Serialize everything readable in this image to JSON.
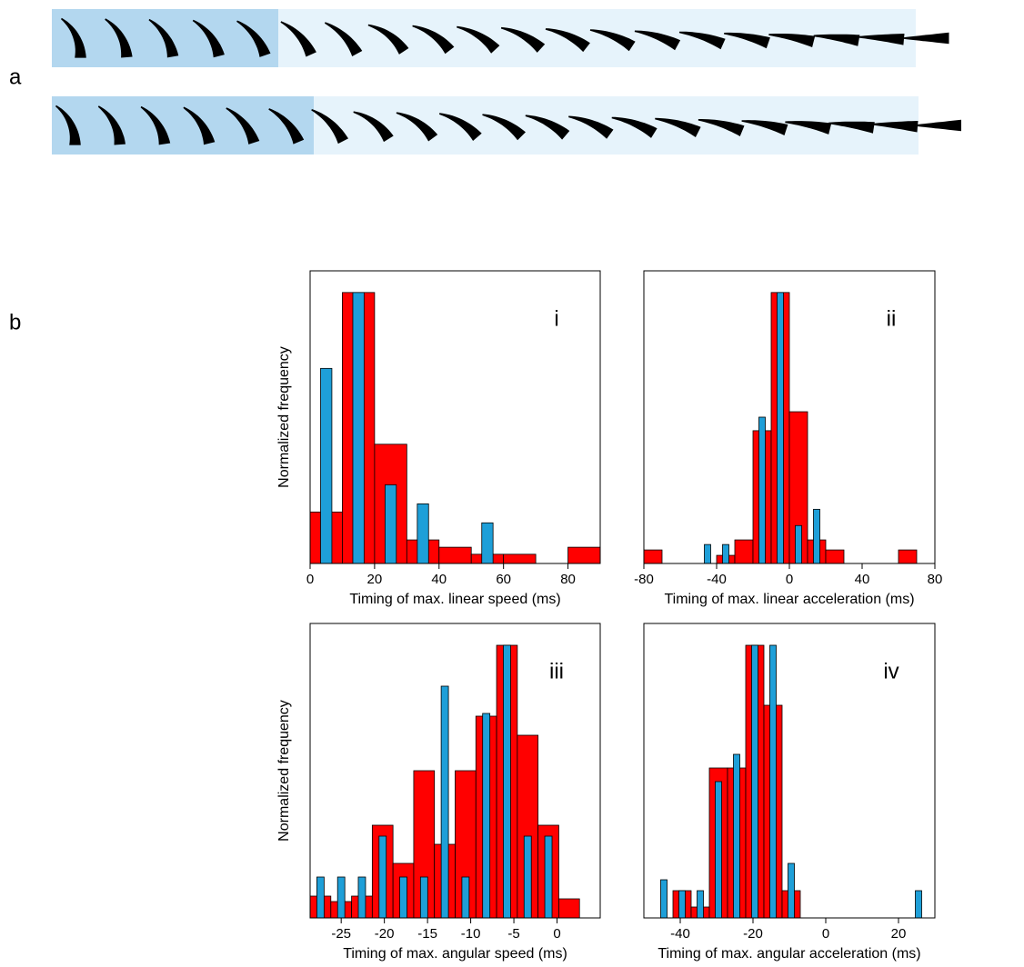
{
  "panel_labels": [
    "a",
    "b"
  ],
  "chart_data": [
    {
      "type": "histogram",
      "annotation": "i",
      "xlabel": "Timing of max. linear speed (ms)",
      "ylabel": "Normalized frequency",
      "bins": [
        0,
        10,
        20,
        30,
        40,
        50,
        60,
        70,
        80,
        90
      ],
      "series": [
        {
          "color": "#ff0000",
          "values": [
            0.19,
            1.0,
            0.44,
            0.087,
            0.06,
            0.034,
            0.034,
            0,
            0.06
          ]
        },
        {
          "color": "#1e9fd8",
          "values": [
            0.72,
            1.0,
            0.29,
            0.22,
            0,
            0.15,
            0,
            0,
            0
          ]
        }
      ],
      "xlim": [
        0,
        90
      ],
      "xticks": [
        0,
        20,
        40,
        60,
        80
      ],
      "ylim": [
        0,
        1.08
      ]
    },
    {
      "type": "histogram",
      "annotation": "ii",
      "xlabel": "Timing of max. linear acceleration (ms)",
      "bins": [
        -80,
        -70,
        -60,
        -50,
        -40,
        -30,
        -20,
        -10,
        0,
        10,
        20,
        30,
        40,
        50,
        60,
        70
      ],
      "series": [
        {
          "color": "#ff0000",
          "values": [
            0.05,
            0,
            0,
            0,
            0.03,
            0.087,
            0.49,
            1.0,
            0.56,
            0.087,
            0.05,
            0,
            0,
            0,
            0.05
          ]
        },
        {
          "color": "#1e9fd8",
          "values": [
            0,
            0,
            0,
            0.07,
            0.07,
            0,
            0.54,
            1.0,
            0.14,
            0.2,
            0,
            0,
            0,
            0,
            0
          ]
        }
      ],
      "xlim": [
        -80,
        80
      ],
      "xticks": [
        -80,
        -40,
        0,
        40,
        80
      ],
      "ylim": [
        0,
        1.08
      ]
    },
    {
      "type": "histogram",
      "annotation": "iii",
      "xlabel": "Timing of max. angular speed (ms)",
      "ylabel": "Normalized frequency",
      "bins": [
        -28.6,
        -26.2,
        -23.8,
        -21.4,
        -19,
        -16.6,
        -14.2,
        -11.8,
        -9.4,
        -7,
        -4.6,
        -2.2,
        0.2,
        2.6
      ],
      "series": [
        {
          "color": "#ff0000",
          "values": [
            0.08,
            0.06,
            0.08,
            0.34,
            0.2,
            0.54,
            0.27,
            0.54,
            0.74,
            1.0,
            0.67,
            0.34,
            0.07
          ]
        },
        {
          "color": "#1e9fd8",
          "values": [
            0.15,
            0.15,
            0.15,
            0.3,
            0.15,
            0.15,
            0.85,
            0.15,
            0.75,
            1.0,
            0.3,
            0.3,
            0
          ]
        }
      ],
      "xlim": [
        -28.6,
        5
      ],
      "xticks": [
        -25,
        -20,
        -15,
        -10,
        -5,
        0
      ],
      "ylim": [
        0,
        1.08
      ]
    },
    {
      "type": "histogram",
      "annotation": "iv",
      "xlabel": "Timing of max. angular acceleration (ms)",
      "bins": [
        -47,
        -42,
        -37,
        -32,
        -27,
        -22,
        -17,
        -12,
        -7,
        -2,
        3,
        8,
        13,
        18,
        23,
        28
      ],
      "series": [
        {
          "color": "#ff0000",
          "values": [
            0,
            0.1,
            0.04,
            0.55,
            0.55,
            1.0,
            0.78,
            0.1,
            0,
            0,
            0,
            0,
            0,
            0,
            0
          ]
        },
        {
          "color": "#1e9fd8",
          "values": [
            0.14,
            0.1,
            0.1,
            0.5,
            0.6,
            1.0,
            1.0,
            0.2,
            0,
            0,
            0,
            0,
            0,
            0,
            0.1
          ]
        }
      ],
      "xlim": [
        -50,
        30
      ],
      "xticks": [
        -40,
        -20,
        0,
        20
      ],
      "ylim": [
        0,
        1.08
      ]
    }
  ]
}
